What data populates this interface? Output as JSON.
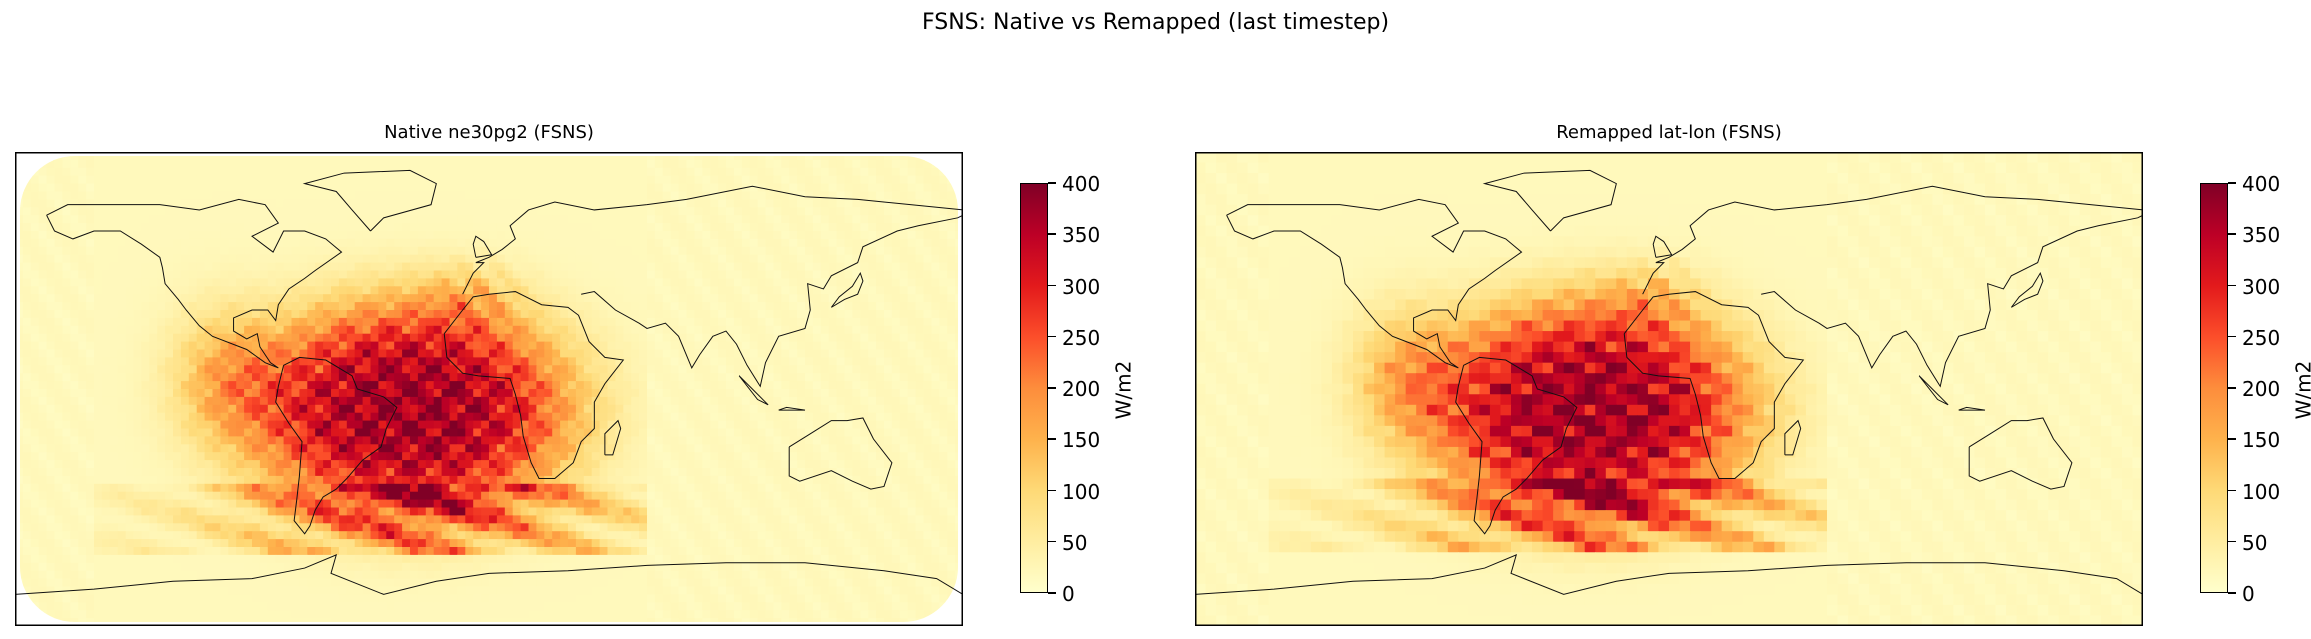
{
  "chart_data": {
    "type": "heatmap",
    "title": "FSNS: Native vs Remapped (last timestep)",
    "colormap": "YlOrRd",
    "colormap_stops": [
      "#ffffcc",
      "#ffeda0",
      "#fed976",
      "#feb24c",
      "#fd8d3c",
      "#fc4e2a",
      "#e31a1c",
      "#bd0026",
      "#800026"
    ],
    "vmin": 0,
    "vmax": 400,
    "panels": [
      {
        "title": "Native ne30pg2 (FSNS)",
        "colorbar_label": "W/m2",
        "colorbar_ticks": [
          "0",
          "50",
          "100",
          "150",
          "200",
          "250",
          "300",
          "350",
          "400"
        ]
      },
      {
        "title": "Remapped lat-lon (FSNS)",
        "colorbar_label": "W/m2",
        "colorbar_ticks": [
          "0",
          "50",
          "100",
          "150",
          "200",
          "250",
          "300",
          "350",
          "400"
        ]
      }
    ],
    "field_description_hotspot_lon_range": [
      -90,
      30
    ],
    "field_description_hotspot_lat_range": [
      -60,
      45
    ]
  }
}
